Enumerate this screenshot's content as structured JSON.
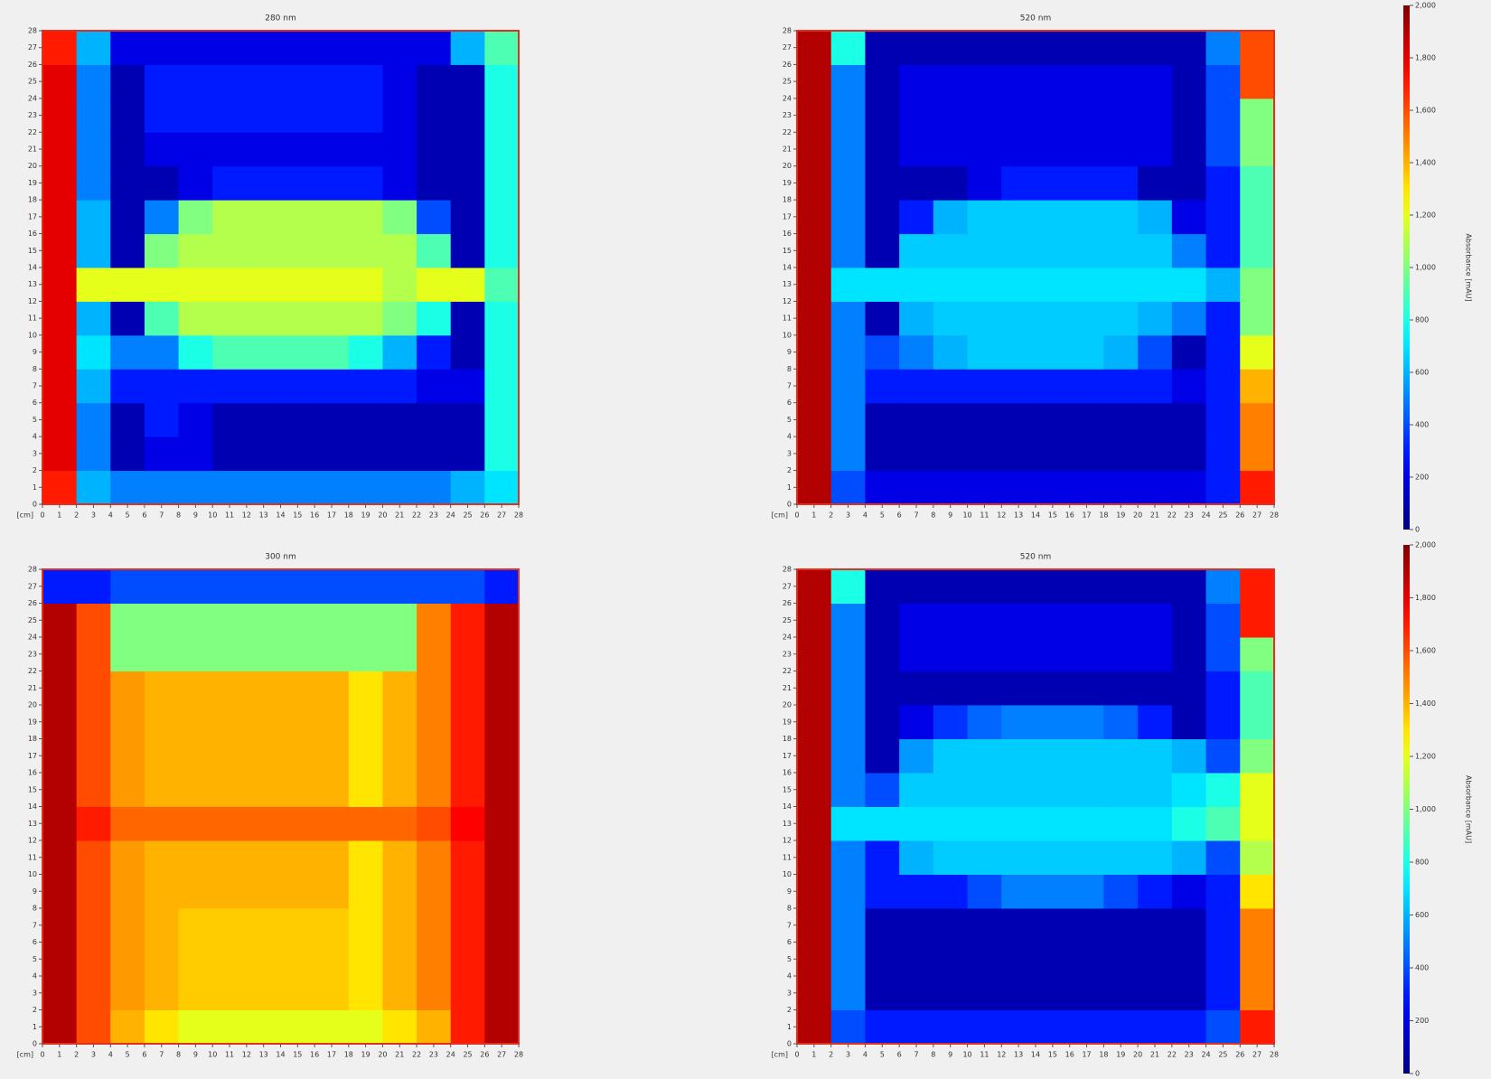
{
  "chart_data": [
    {
      "type": "heatmap",
      "title": "280 nm",
      "xlabel": "[cm]",
      "colormap": "jet",
      "zlim": [
        0,
        2000
      ],
      "xlim": [
        0,
        28
      ],
      "ylim": [
        0,
        28
      ],
      "xticks": [
        0,
        1,
        2,
        3,
        4,
        5,
        6,
        7,
        8,
        9,
        10,
        11,
        12,
        13,
        14,
        15,
        16,
        17,
        18,
        19,
        20,
        21,
        22,
        23,
        24,
        25,
        26,
        27,
        28
      ],
      "yticks": [
        0,
        1,
        2,
        3,
        4,
        5,
        6,
        7,
        8,
        9,
        10,
        11,
        12,
        13,
        14,
        15,
        16,
        17,
        18,
        19,
        20,
        21,
        22,
        23,
        24,
        25,
        26,
        27,
        28
      ],
      "z": [
        [
          1700,
          600,
          500,
          500,
          500,
          500,
          500,
          500,
          500,
          500,
          500,
          500,
          600,
          700
        ],
        [
          1800,
          500,
          100,
          200,
          200,
          100,
          100,
          100,
          100,
          100,
          100,
          100,
          100,
          800
        ],
        [
          1800,
          500,
          100,
          300,
          200,
          100,
          100,
          100,
          100,
          100,
          100,
          100,
          100,
          800
        ],
        [
          1800,
          600,
          300,
          300,
          300,
          300,
          300,
          300,
          300,
          300,
          300,
          200,
          200,
          800
        ],
        [
          1800,
          700,
          500,
          500,
          800,
          900,
          900,
          900,
          900,
          800,
          600,
          300,
          100,
          800
        ],
        [
          1800,
          600,
          100,
          900,
          1100,
          1100,
          1100,
          1100,
          1100,
          1100,
          1000,
          800,
          100,
          800
        ],
        [
          1800,
          1200,
          1200,
          1200,
          1200,
          1200,
          1200,
          1200,
          1200,
          1200,
          1100,
          1200,
          1200,
          900
        ],
        [
          1800,
          600,
          100,
          1000,
          1100,
          1100,
          1100,
          1100,
          1100,
          1100,
          1100,
          900,
          100,
          800
        ],
        [
          1800,
          600,
          100,
          500,
          1000,
          1100,
          1100,
          1100,
          1100,
          1100,
          1000,
          400,
          100,
          800
        ],
        [
          1800,
          500,
          100,
          100,
          200,
          300,
          300,
          300,
          300,
          300,
          200,
          100,
          100,
          800
        ],
        [
          1800,
          500,
          100,
          200,
          200,
          200,
          200,
          200,
          200,
          200,
          200,
          100,
          100,
          800
        ],
        [
          1800,
          500,
          100,
          300,
          300,
          300,
          300,
          300,
          300,
          300,
          200,
          100,
          100,
          800
        ],
        [
          1800,
          500,
          100,
          300,
          300,
          300,
          300,
          300,
          300,
          300,
          200,
          100,
          100,
          800
        ],
        [
          1700,
          600,
          200,
          200,
          200,
          200,
          200,
          200,
          200,
          200,
          200,
          200,
          600,
          900
        ]
      ]
    },
    {
      "type": "heatmap",
      "title": "520 nm",
      "xlabel": "[cm]",
      "colormap": "jet",
      "zlim": [
        0,
        2000
      ],
      "xlim": [
        0,
        28
      ],
      "ylim": [
        0,
        28
      ],
      "xticks": [
        0,
        1,
        2,
        3,
        4,
        5,
        6,
        7,
        8,
        9,
        10,
        11,
        12,
        13,
        14,
        15,
        16,
        17,
        18,
        19,
        20,
        21,
        22,
        23,
        24,
        25,
        26,
        27,
        28
      ],
      "yticks": [
        0,
        1,
        2,
        3,
        4,
        5,
        6,
        7,
        8,
        9,
        10,
        11,
        12,
        13,
        14,
        15,
        16,
        17,
        18,
        19,
        20,
        21,
        22,
        23,
        24,
        25,
        26,
        27,
        28
      ],
      "z": [
        [
          1900,
          400,
          200,
          200,
          200,
          200,
          200,
          200,
          200,
          200,
          200,
          200,
          300,
          1700
        ],
        [
          1900,
          500,
          100,
          100,
          100,
          100,
          100,
          100,
          100,
          100,
          100,
          100,
          300,
          1500
        ],
        [
          1900,
          500,
          100,
          100,
          100,
          100,
          100,
          100,
          100,
          100,
          100,
          100,
          300,
          1500
        ],
        [
          1900,
          500,
          300,
          300,
          300,
          300,
          300,
          300,
          300,
          300,
          300,
          200,
          300,
          1400
        ],
        [
          1900,
          500,
          400,
          500,
          600,
          650,
          650,
          650,
          650,
          600,
          400,
          100,
          300,
          1200
        ],
        [
          1900,
          500,
          100,
          600,
          650,
          650,
          650,
          650,
          650,
          650,
          600,
          500,
          300,
          1000
        ],
        [
          1900,
          700,
          700,
          700,
          700,
          700,
          700,
          700,
          700,
          700,
          700,
          700,
          600,
          1000
        ],
        [
          1900,
          500,
          100,
          650,
          650,
          650,
          650,
          650,
          650,
          650,
          650,
          500,
          300,
          900
        ],
        [
          1900,
          500,
          100,
          300,
          600,
          650,
          650,
          650,
          650,
          650,
          600,
          200,
          300,
          900
        ],
        [
          1900,
          500,
          100,
          100,
          100,
          200,
          300,
          300,
          300,
          300,
          100,
          100,
          300,
          900
        ],
        [
          1900,
          500,
          100,
          200,
          200,
          200,
          200,
          200,
          200,
          200,
          200,
          100,
          400,
          1000
        ],
        [
          1900,
          500,
          100,
          200,
          200,
          200,
          200,
          200,
          200,
          200,
          200,
          100,
          400,
          1000
        ],
        [
          1900,
          500,
          100,
          200,
          200,
          200,
          200,
          200,
          200,
          200,
          200,
          100,
          400,
          1600
        ],
        [
          1900,
          800,
          100,
          100,
          100,
          100,
          100,
          100,
          100,
          100,
          100,
          100,
          500,
          1600
        ]
      ]
    },
    {
      "type": "heatmap",
      "title": "300 nm",
      "xlabel": "[cm]",
      "colormap": "jet",
      "zlim": [
        0,
        2000
      ],
      "xlim": [
        0,
        28
      ],
      "ylim": [
        0,
        28
      ],
      "xticks": [
        0,
        1,
        2,
        3,
        4,
        5,
        6,
        7,
        8,
        9,
        10,
        11,
        12,
        13,
        14,
        15,
        16,
        17,
        18,
        19,
        20,
        21,
        22,
        23,
        24,
        25,
        26,
        27,
        28
      ],
      "yticks": [
        0,
        1,
        2,
        3,
        4,
        5,
        6,
        7,
        8,
        9,
        10,
        11,
        12,
        13,
        14,
        15,
        16,
        17,
        18,
        19,
        20,
        21,
        22,
        23,
        24,
        25,
        26,
        27,
        28
      ],
      "z": [
        [
          1900,
          1600,
          1400,
          1300,
          1200,
          1200,
          1200,
          1200,
          1200,
          1200,
          1300,
          1400,
          1700,
          1900
        ],
        [
          1900,
          1600,
          1450,
          1400,
          1350,
          1350,
          1350,
          1350,
          1350,
          1300,
          1400,
          1500,
          1700,
          1900
        ],
        [
          1900,
          1600,
          1450,
          1400,
          1350,
          1350,
          1350,
          1350,
          1350,
          1300,
          1400,
          1500,
          1700,
          1900
        ],
        [
          1900,
          1600,
          1450,
          1400,
          1350,
          1350,
          1350,
          1350,
          1350,
          1300,
          1400,
          1500,
          1700,
          1900
        ],
        [
          1900,
          1600,
          1450,
          1400,
          1400,
          1400,
          1400,
          1400,
          1400,
          1300,
          1400,
          1500,
          1700,
          1900
        ],
        [
          1900,
          1600,
          1450,
          1400,
          1400,
          1400,
          1400,
          1400,
          1400,
          1300,
          1400,
          1500,
          1700,
          1900
        ],
        [
          1900,
          1700,
          1550,
          1550,
          1550,
          1550,
          1550,
          1550,
          1550,
          1550,
          1550,
          1600,
          1750,
          1900
        ],
        [
          1900,
          1600,
          1450,
          1400,
          1400,
          1400,
          1400,
          1400,
          1400,
          1300,
          1400,
          1500,
          1700,
          1900
        ],
        [
          1900,
          1600,
          1450,
          1400,
          1400,
          1400,
          1400,
          1400,
          1400,
          1300,
          1400,
          1500,
          1700,
          1900
        ],
        [
          1900,
          1600,
          1450,
          1400,
          1400,
          1400,
          1400,
          1400,
          1400,
          1300,
          1400,
          1500,
          1700,
          1900
        ],
        [
          1900,
          1600,
          1450,
          1400,
          1400,
          1400,
          1400,
          1400,
          1400,
          1300,
          1400,
          1500,
          1700,
          1900
        ],
        [
          1900,
          1600,
          1000,
          1000,
          1000,
          1000,
          1000,
          1000,
          1000,
          1000,
          1000,
          1500,
          1700,
          1900
        ],
        [
          1900,
          1600,
          1000,
          1000,
          1000,
          1000,
          1000,
          1000,
          1000,
          1000,
          1000,
          1500,
          1700,
          1900
        ],
        [
          300,
          300,
          400,
          400,
          400,
          400,
          400,
          400,
          400,
          400,
          400,
          400,
          400,
          300
        ]
      ]
    },
    {
      "type": "heatmap",
      "title": "520 nm",
      "xlabel": "[cm]",
      "colormap": "jet",
      "zlim": [
        0,
        2000
      ],
      "xlim": [
        0,
        28
      ],
      "ylim": [
        0,
        28
      ],
      "xticks": [
        0,
        1,
        2,
        3,
        4,
        5,
        6,
        7,
        8,
        9,
        10,
        11,
        12,
        13,
        14,
        15,
        16,
        17,
        18,
        19,
        20,
        21,
        22,
        23,
        24,
        25,
        26,
        27,
        28
      ],
      "yticks": [
        0,
        1,
        2,
        3,
        4,
        5,
        6,
        7,
        8,
        9,
        10,
        11,
        12,
        13,
        14,
        15,
        16,
        17,
        18,
        19,
        20,
        21,
        22,
        23,
        24,
        25,
        26,
        27,
        28
      ],
      "z": [
        [
          1900,
          400,
          300,
          300,
          300,
          300,
          300,
          300,
          300,
          300,
          300,
          300,
          400,
          1700
        ],
        [
          1900,
          500,
          100,
          100,
          100,
          100,
          100,
          100,
          100,
          100,
          100,
          100,
          300,
          1500
        ],
        [
          1900,
          500,
          100,
          100,
          100,
          100,
          100,
          100,
          100,
          100,
          100,
          100,
          300,
          1500
        ],
        [
          1900,
          500,
          100,
          100,
          100,
          100,
          100,
          100,
          100,
          100,
          100,
          100,
          300,
          1500
        ],
        [
          1900,
          500,
          300,
          300,
          300,
          400,
          500,
          500,
          500,
          400,
          300,
          200,
          300,
          1300
        ],
        [
          1900,
          500,
          300,
          600,
          650,
          650,
          650,
          650,
          650,
          650,
          650,
          600,
          400,
          1100
        ],
        [
          1900,
          700,
          700,
          700,
          700,
          700,
          700,
          700,
          700,
          700,
          700,
          800,
          900,
          1200
        ],
        [
          1900,
          500,
          400,
          650,
          650,
          650,
          650,
          650,
          650,
          650,
          650,
          700,
          800,
          1200
        ],
        [
          1900,
          500,
          100,
          550,
          650,
          650,
          650,
          650,
          650,
          650,
          650,
          600,
          400,
          1000
        ],
        [
          1900,
          500,
          100,
          200,
          350,
          450,
          500,
          500,
          500,
          450,
          300,
          100,
          300,
          900
        ],
        [
          1900,
          500,
          100,
          100,
          100,
          100,
          100,
          100,
          100,
          100,
          100,
          100,
          300,
          900
        ],
        [
          1900,
          500,
          100,
          200,
          200,
          200,
          200,
          200,
          200,
          200,
          200,
          100,
          400,
          1000
        ],
        [
          1900,
          500,
          100,
          200,
          200,
          200,
          200,
          200,
          200,
          200,
          200,
          100,
          400,
          1700
        ],
        [
          1900,
          800,
          100,
          100,
          100,
          100,
          100,
          100,
          100,
          100,
          100,
          100,
          500,
          1700
        ]
      ]
    },
    {
      "type": "colorbar",
      "label": "Absorbance [mAU]",
      "colormap": "jet",
      "zlim": [
        0,
        2000
      ],
      "ticks": [
        0,
        200,
        400,
        600,
        800,
        {
          "value": 1000,
          "label": "1,000"
        },
        {
          "value": 1200,
          "label": "1,200"
        },
        {
          "value": 1400,
          "label": "1,400"
        },
        {
          "value": 1600,
          "label": "1,600"
        },
        {
          "value": 1800,
          "label": "1,800"
        },
        {
          "value": 2000,
          "label": "2,000"
        }
      ]
    },
    {
      "type": "colorbar",
      "label": "Absorbance [mAU]",
      "colormap": "jet",
      "zlim": [
        0,
        2000
      ],
      "ticks": [
        0,
        200,
        400,
        600,
        800,
        {
          "value": 1000,
          "label": "1,000"
        },
        {
          "value": 1200,
          "label": "1,200"
        },
        {
          "value": 1400,
          "label": "1,400"
        },
        {
          "value": 1600,
          "label": "1,600"
        },
        {
          "value": 1800,
          "label": "1,800"
        },
        {
          "value": 2000,
          "label": "2,000"
        }
      ]
    }
  ]
}
